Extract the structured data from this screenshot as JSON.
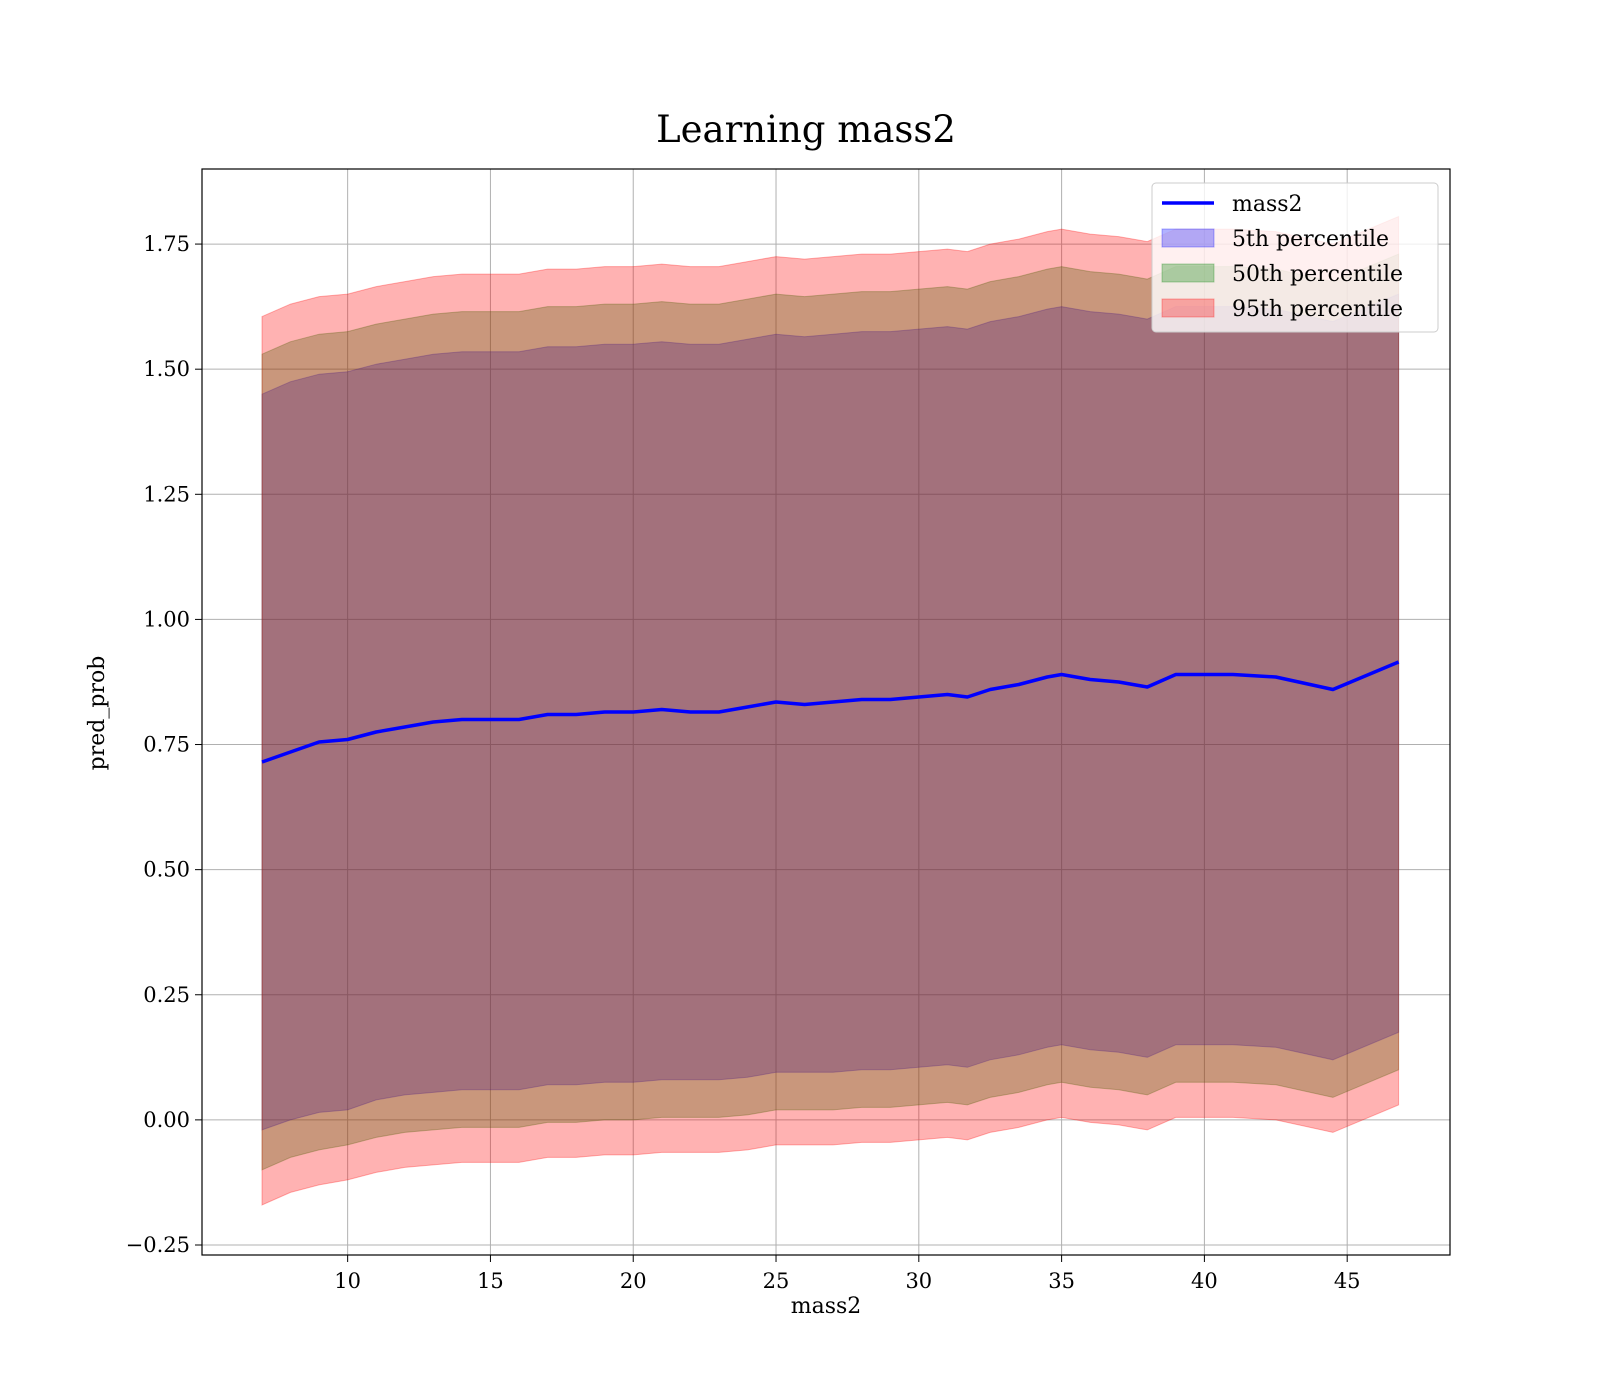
{
  "chart_data": {
    "type": "line",
    "title": "Learning mass2",
    "xlabel": "mass2",
    "ylabel": "pred_prob",
    "xlim": [
      4.9,
      48.6
    ],
    "ylim": [
      -0.27,
      1.9
    ],
    "xticks": [
      10,
      15,
      20,
      25,
      30,
      35,
      40,
      45
    ],
    "yticks": [
      -0.25,
      0.0,
      0.25,
      0.5,
      0.75,
      1.0,
      1.25,
      1.5,
      1.75
    ],
    "ytick_labels": [
      "−0.25",
      "0.00",
      "0.25",
      "0.50",
      "0.75",
      "1.00",
      "1.25",
      "1.50",
      "1.75"
    ],
    "grid": true,
    "legend_position": "top-right",
    "legend": [
      "mass2",
      "5th percentile",
      "50th percentile",
      "95th percentile"
    ],
    "x": [
      7.0,
      8.0,
      9.0,
      10.0,
      11.0,
      12.0,
      13.0,
      14.0,
      15.0,
      16.0,
      17.0,
      18.0,
      19.0,
      20.0,
      21.0,
      22.0,
      23.0,
      24.0,
      25.0,
      26.0,
      27.0,
      28.0,
      29.0,
      30.0,
      31.0,
      31.7,
      32.5,
      33.5,
      34.5,
      35.0,
      36.0,
      37.0,
      38.0,
      39.0,
      40.0,
      41.0,
      42.5,
      44.5,
      46.8
    ],
    "series": [
      {
        "name": "mass2",
        "color": "#0000ff",
        "values": [
          0.715,
          0.735,
          0.755,
          0.76,
          0.775,
          0.785,
          0.795,
          0.8,
          0.8,
          0.8,
          0.81,
          0.81,
          0.815,
          0.815,
          0.82,
          0.815,
          0.815,
          0.825,
          0.835,
          0.83,
          0.835,
          0.84,
          0.84,
          0.845,
          0.85,
          0.845,
          0.86,
          0.87,
          0.885,
          0.89,
          0.88,
          0.875,
          0.865,
          0.89,
          0.89,
          0.89,
          0.885,
          0.86,
          0.915
        ]
      },
      {
        "name": "5th percentile",
        "color": "#0000ff",
        "lower": [
          -0.02,
          0.0,
          0.015,
          0.02,
          0.04,
          0.05,
          0.055,
          0.06,
          0.06,
          0.06,
          0.07,
          0.07,
          0.075,
          0.075,
          0.08,
          0.08,
          0.08,
          0.085,
          0.095,
          0.095,
          0.095,
          0.1,
          0.1,
          0.105,
          0.11,
          0.105,
          0.12,
          0.13,
          0.145,
          0.15,
          0.14,
          0.135,
          0.125,
          0.15,
          0.15,
          0.15,
          0.145,
          0.12,
          0.175
        ],
        "upper": [
          1.45,
          1.475,
          1.49,
          1.495,
          1.51,
          1.52,
          1.53,
          1.535,
          1.535,
          1.535,
          1.545,
          1.545,
          1.55,
          1.55,
          1.555,
          1.55,
          1.55,
          1.56,
          1.57,
          1.565,
          1.57,
          1.575,
          1.575,
          1.58,
          1.585,
          1.58,
          1.595,
          1.605,
          1.62,
          1.625,
          1.615,
          1.61,
          1.6,
          1.625,
          1.625,
          1.625,
          1.62,
          1.595,
          1.65
        ]
      },
      {
        "name": "50th percentile",
        "color": "#008000",
        "lower": [
          -0.1,
          -0.075,
          -0.06,
          -0.05,
          -0.035,
          -0.025,
          -0.02,
          -0.015,
          -0.015,
          -0.015,
          -0.005,
          -0.005,
          0.0,
          0.0,
          0.005,
          0.005,
          0.005,
          0.01,
          0.02,
          0.02,
          0.02,
          0.025,
          0.025,
          0.03,
          0.035,
          0.03,
          0.045,
          0.055,
          0.07,
          0.075,
          0.065,
          0.06,
          0.05,
          0.075,
          0.075,
          0.075,
          0.07,
          0.045,
          0.1
        ],
        "upper": [
          1.53,
          1.555,
          1.57,
          1.575,
          1.59,
          1.6,
          1.61,
          1.615,
          1.615,
          1.615,
          1.625,
          1.625,
          1.63,
          1.63,
          1.635,
          1.63,
          1.63,
          1.64,
          1.65,
          1.645,
          1.65,
          1.655,
          1.655,
          1.66,
          1.665,
          1.66,
          1.675,
          1.685,
          1.7,
          1.705,
          1.695,
          1.69,
          1.68,
          1.705,
          1.705,
          1.705,
          1.7,
          1.675,
          1.73
        ]
      },
      {
        "name": "95th percentile",
        "color": "#ff0000",
        "lower": [
          -0.17,
          -0.145,
          -0.13,
          -0.12,
          -0.105,
          -0.095,
          -0.09,
          -0.085,
          -0.085,
          -0.085,
          -0.075,
          -0.075,
          -0.07,
          -0.07,
          -0.065,
          -0.065,
          -0.065,
          -0.06,
          -0.05,
          -0.05,
          -0.05,
          -0.045,
          -0.045,
          -0.04,
          -0.035,
          -0.04,
          -0.025,
          -0.015,
          0.0,
          0.005,
          -0.005,
          -0.01,
          -0.02,
          0.005,
          0.005,
          0.005,
          0.0,
          -0.025,
          0.03
        ],
        "upper": [
          1.605,
          1.63,
          1.645,
          1.65,
          1.665,
          1.675,
          1.685,
          1.69,
          1.69,
          1.69,
          1.7,
          1.7,
          1.705,
          1.705,
          1.71,
          1.705,
          1.705,
          1.715,
          1.725,
          1.72,
          1.725,
          1.73,
          1.73,
          1.735,
          1.74,
          1.735,
          1.75,
          1.76,
          1.775,
          1.78,
          1.77,
          1.765,
          1.755,
          1.78,
          1.78,
          1.78,
          1.775,
          1.75,
          1.805
        ]
      }
    ]
  }
}
